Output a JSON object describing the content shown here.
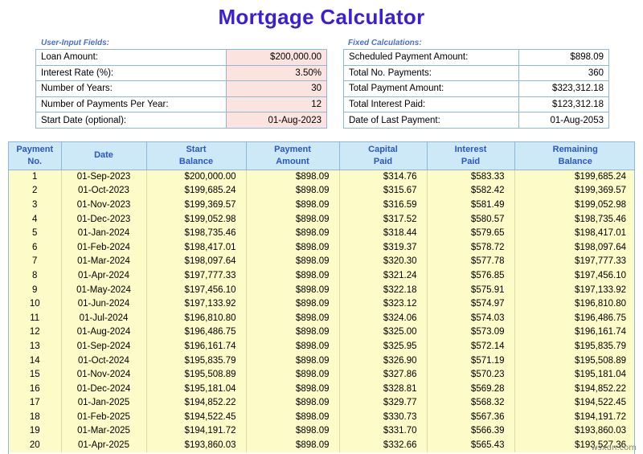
{
  "title": "Mortgage Calculator",
  "user_input": {
    "label": "User-Input Fields:",
    "rows": [
      {
        "label": "Loan Amount:",
        "value": "$200,000.00"
      },
      {
        "label": "Interest Rate (%):",
        "value": "3.50%"
      },
      {
        "label": "Number of Years:",
        "value": "30"
      },
      {
        "label": "Number of  Payments Per Year:",
        "value": "12"
      },
      {
        "label": "Start Date (optional):",
        "value": "01-Aug-2023"
      }
    ]
  },
  "fixed": {
    "label": "Fixed Calculations:",
    "rows": [
      {
        "label": "Scheduled Payment Amount:",
        "value": "$898.09"
      },
      {
        "label": "Total No. Payments:",
        "value": "360"
      },
      {
        "label": "Total Payment Amount:",
        "value": "$323,312.18"
      },
      {
        "label": "Total Interest Paid:",
        "value": "$123,312.18"
      },
      {
        "label": "Date of Last Payment:",
        "value": "01-Aug-2053"
      }
    ]
  },
  "schedule": {
    "headers": [
      [
        "Payment",
        "No."
      ],
      [
        "Date",
        ""
      ],
      [
        "Start",
        "Balance"
      ],
      [
        "Payment",
        "Amount"
      ],
      [
        "Capital",
        "Paid"
      ],
      [
        "Interest",
        "Paid"
      ],
      [
        "Remaining",
        "Balance"
      ]
    ],
    "rows": [
      [
        "1",
        "01-Sep-2023",
        "$200,000.00",
        "$898.09",
        "$314.76",
        "$583.33",
        "$199,685.24"
      ],
      [
        "2",
        "01-Oct-2023",
        "$199,685.24",
        "$898.09",
        "$315.67",
        "$582.42",
        "$199,369.57"
      ],
      [
        "3",
        "01-Nov-2023",
        "$199,369.57",
        "$898.09",
        "$316.59",
        "$581.49",
        "$199,052.98"
      ],
      [
        "4",
        "01-Dec-2023",
        "$199,052.98",
        "$898.09",
        "$317.52",
        "$580.57",
        "$198,735.46"
      ],
      [
        "5",
        "01-Jan-2024",
        "$198,735.46",
        "$898.09",
        "$318.44",
        "$579.65",
        "$198,417.01"
      ],
      [
        "6",
        "01-Feb-2024",
        "$198,417.01",
        "$898.09",
        "$319.37",
        "$578.72",
        "$198,097.64"
      ],
      [
        "7",
        "01-Mar-2024",
        "$198,097.64",
        "$898.09",
        "$320.30",
        "$577.78",
        "$197,777.33"
      ],
      [
        "8",
        "01-Apr-2024",
        "$197,777.33",
        "$898.09",
        "$321.24",
        "$576.85",
        "$197,456.10"
      ],
      [
        "9",
        "01-May-2024",
        "$197,456.10",
        "$898.09",
        "$322.18",
        "$575.91",
        "$197,133.92"
      ],
      [
        "10",
        "01-Jun-2024",
        "$197,133.92",
        "$898.09",
        "$323.12",
        "$574.97",
        "$196,810.80"
      ],
      [
        "11",
        "01-Jul-2024",
        "$196,810.80",
        "$898.09",
        "$324.06",
        "$574.03",
        "$196,486.75"
      ],
      [
        "12",
        "01-Aug-2024",
        "$196,486.75",
        "$898.09",
        "$325.00",
        "$573.09",
        "$196,161.74"
      ],
      [
        "13",
        "01-Sep-2024",
        "$196,161.74",
        "$898.09",
        "$325.95",
        "$572.14",
        "$195,835.79"
      ],
      [
        "14",
        "01-Oct-2024",
        "$195,835.79",
        "$898.09",
        "$326.90",
        "$571.19",
        "$195,508.89"
      ],
      [
        "15",
        "01-Nov-2024",
        "$195,508.89",
        "$898.09",
        "$327.86",
        "$570.23",
        "$195,181.04"
      ],
      [
        "16",
        "01-Dec-2024",
        "$195,181.04",
        "$898.09",
        "$328.81",
        "$569.28",
        "$194,852.22"
      ],
      [
        "17",
        "01-Jan-2025",
        "$194,852.22",
        "$898.09",
        "$329.77",
        "$568.32",
        "$194,522.45"
      ],
      [
        "18",
        "01-Feb-2025",
        "$194,522.45",
        "$898.09",
        "$330.73",
        "$567.36",
        "$194,191.72"
      ],
      [
        "19",
        "01-Mar-2025",
        "$194,191.72",
        "$898.09",
        "$331.70",
        "$566.39",
        "$193,860.03"
      ],
      [
        "20",
        "01-Apr-2025",
        "$193,860.03",
        "$898.09",
        "$332.66",
        "$565.43",
        "$193,527.36"
      ]
    ]
  },
  "watermark": "wsxdn.com"
}
